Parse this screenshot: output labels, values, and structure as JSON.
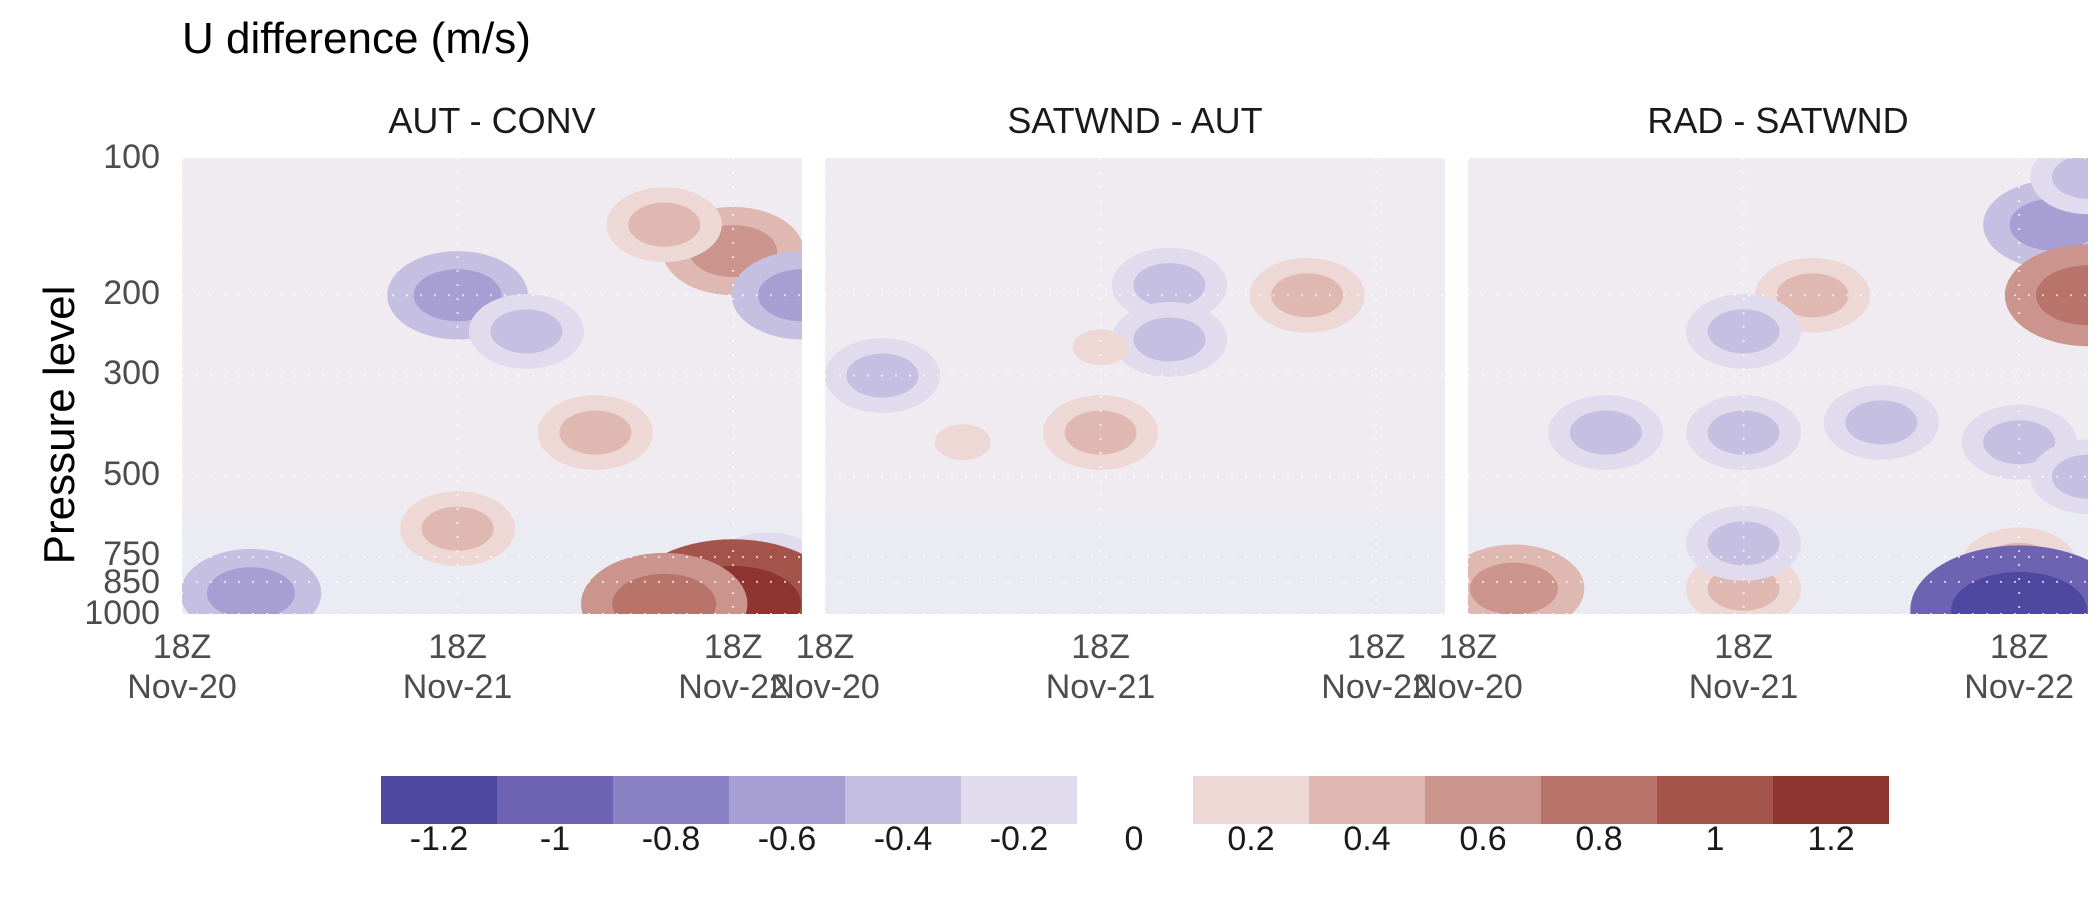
{
  "chart_data": {
    "type": "heatmap",
    "title": "U difference (m/s)",
    "ylabel": "Pressure level",
    "xlabel": "",
    "y_scale": "log-pressure (reversed)",
    "y_ticks": [
      "100",
      "200",
      "300",
      "500",
      "750",
      "850",
      "1000"
    ],
    "x_ticks": [
      {
        "line1": "18Z",
        "line2": "Nov-20"
      },
      {
        "line1": "18Z",
        "line2": "Nov-21"
      },
      {
        "line1": "18Z",
        "line2": "Nov-22"
      }
    ],
    "x_range": [
      "2023-11-20T18:00",
      "2023-11-23T00:00"
    ],
    "panels": [
      {
        "title": "AUT - CONV",
        "features": [
          {
            "time": "2023-11-22T18:00",
            "level": 160,
            "value": 0.6
          },
          {
            "time": "2023-11-22T12:00",
            "level": 140,
            "value": 0.4
          },
          {
            "time": "2023-11-21T18:00",
            "level": 200,
            "value": -0.6
          },
          {
            "time": "2023-11-22T00:00",
            "level": 240,
            "value": -0.4
          },
          {
            "time": "2023-11-23T00:00",
            "level": 200,
            "value": -0.6
          },
          {
            "time": "2023-11-22T06:00",
            "level": 400,
            "value": 0.4
          },
          {
            "time": "2023-11-21T18:00",
            "level": 650,
            "value": 0.4
          },
          {
            "time": "2023-11-22T21:00",
            "level": 800,
            "value": -0.4
          },
          {
            "time": "2023-11-21T00:00",
            "level": 900,
            "value": -0.6
          },
          {
            "time": "2023-11-22T18:00",
            "level": 950,
            "value": 1.2
          },
          {
            "time": "2023-11-22T12:00",
            "level": 950,
            "value": 0.8
          }
        ]
      },
      {
        "title": "SATWND - AUT",
        "features": [
          {
            "time": "2023-11-20T23:00",
            "level": 300,
            "value": -0.4
          },
          {
            "time": "2023-11-21T18:00",
            "level": 400,
            "value": 0.4
          },
          {
            "time": "2023-11-21T06:00",
            "level": 420,
            "value": 0.2
          },
          {
            "time": "2023-11-22T00:00",
            "level": 190,
            "value": -0.4
          },
          {
            "time": "2023-11-22T00:00",
            "level": 250,
            "value": -0.4
          },
          {
            "time": "2023-11-22T12:00",
            "level": 200,
            "value": 0.4
          },
          {
            "time": "2023-11-21T18:00",
            "level": 260,
            "value": 0.2
          }
        ]
      },
      {
        "title": "RAD - SATWND",
        "features": [
          {
            "time": "2023-11-22T21:00",
            "level": 140,
            "value": -0.6
          },
          {
            "time": "2023-11-23T00:00",
            "level": 110,
            "value": -0.4
          },
          {
            "time": "2023-11-23T00:00",
            "level": 200,
            "value": 0.8
          },
          {
            "time": "2023-11-22T00:00",
            "level": 200,
            "value": 0.4
          },
          {
            "time": "2023-11-21T18:00",
            "level": 240,
            "value": -0.4
          },
          {
            "time": "2023-11-21T06:00",
            "level": 400,
            "value": -0.4
          },
          {
            "time": "2023-11-21T18:00",
            "level": 400,
            "value": -0.4
          },
          {
            "time": "2023-11-22T06:00",
            "level": 380,
            "value": -0.4
          },
          {
            "time": "2023-11-22T18:00",
            "level": 420,
            "value": -0.4
          },
          {
            "time": "2023-11-23T00:00",
            "level": 500,
            "value": -0.4
          },
          {
            "time": "2023-11-22T18:00",
            "level": 780,
            "value": 0.4
          },
          {
            "time": "2023-11-20T22:00",
            "level": 880,
            "value": 0.6
          },
          {
            "time": "2023-11-21T18:00",
            "level": 880,
            "value": 0.4
          },
          {
            "time": "2023-11-22T18:00",
            "level": 980,
            "value": -1.2
          },
          {
            "time": "2023-11-21T18:00",
            "level": 700,
            "value": -0.4
          }
        ]
      }
    ],
    "legend": {
      "negative": [
        {
          "label": "-1.2",
          "color": "#4e48a0"
        },
        {
          "label": "-1",
          "color": "#6e63b3"
        },
        {
          "label": "-0.8",
          "color": "#8a81c4"
        },
        {
          "label": "-0.6",
          "color": "#a79fd4"
        },
        {
          "label": "-0.4",
          "color": "#c5bfe1"
        },
        {
          "label": "-0.2",
          "color": "#e0dcee"
        }
      ],
      "zero_label": "0",
      "positive": [
        {
          "label": "0.2",
          "color": "#eed8d5"
        },
        {
          "label": "0.4",
          "color": "#e0b8b2"
        },
        {
          "label": "0.6",
          "color": "#cb948d"
        },
        {
          "label": "0.8",
          "color": "#b8736a"
        },
        {
          "label": "1",
          "color": "#a5544c"
        },
        {
          "label": "1.2",
          "color": "#8e3531"
        }
      ]
    },
    "grid": true
  }
}
